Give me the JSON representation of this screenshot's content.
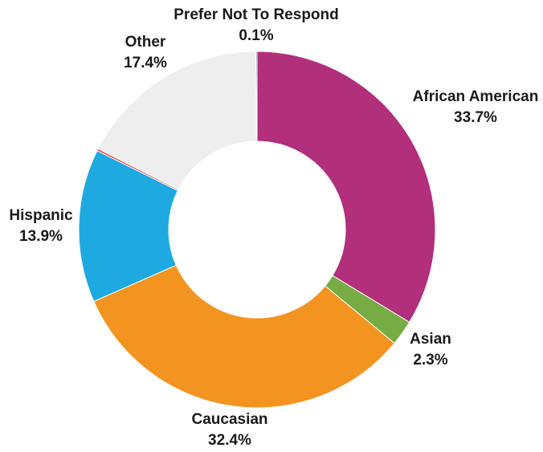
{
  "chart_data": {
    "type": "pie",
    "variant": "donut",
    "title": "",
    "slices": [
      {
        "label": "African American",
        "value": 33.7,
        "display": "33.7%",
        "color": "#b12f7b"
      },
      {
        "label": "Asian",
        "value": 2.3,
        "display": "2.3%",
        "color": "#77ab43"
      },
      {
        "label": "Caucasian",
        "value": 32.4,
        "display": "32.4%",
        "color": "#f39320"
      },
      {
        "label": "Hispanic",
        "value": 13.9,
        "display": "13.9%",
        "color": "#1ea9e1"
      },
      {
        "label": "",
        "value": 0.2,
        "display": "",
        "color": "#e8473f"
      },
      {
        "label": "Other",
        "value": 17.4,
        "display": "17.4%",
        "color": "#eeeeef"
      },
      {
        "label": "Prefer Not To Respond",
        "value": 0.1,
        "display": "0.1%",
        "color": "#3b3f8f"
      }
    ],
    "legend": "none"
  }
}
